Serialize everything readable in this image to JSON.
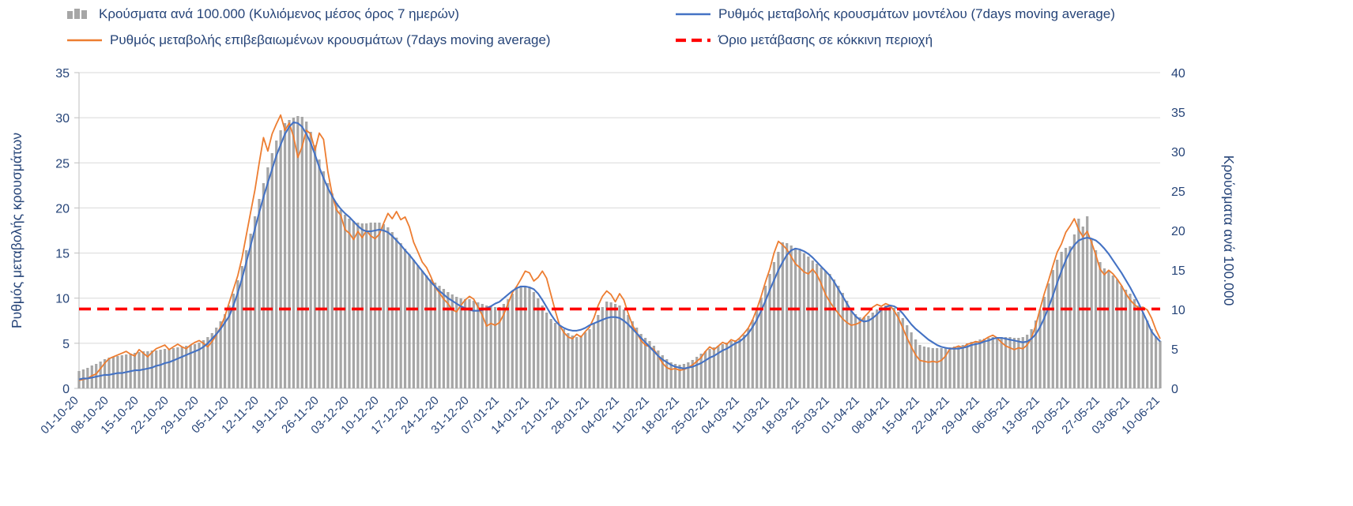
{
  "chart_data": {
    "type": "combo",
    "title": "",
    "grid": true,
    "legend_position": "top",
    "colors": {
      "text": "#264478",
      "grid": "#D9D9D9",
      "axis": "#BFBFBF",
      "background": "#FFFFFF"
    },
    "left_axis": {
      "label": "Ρυθμός μεταβολής κρουσμάτων",
      "min": 0,
      "max": 35,
      "step": 5
    },
    "right_axis": {
      "label": "Κρούσματα ανά 100.000",
      "min": 0,
      "max": 40,
      "step": 5
    },
    "threshold": {
      "label": "Όριο μετάβασης σε κόκκινη περιοχή",
      "value": 8.8,
      "axis": "left",
      "color": "#FF0000",
      "style": "dashed"
    },
    "x_axis": {
      "unit": "day",
      "tick_interval_days": 7,
      "tick_labels": [
        "01-10-20",
        "08-10-20",
        "15-10-20",
        "22-10-20",
        "29-10-20",
        "05-11-20",
        "12-11-20",
        "19-11-20",
        "26-11-20",
        "03-12-20",
        "10-12-20",
        "17-12-20",
        "24-12-20",
        "31-12-20",
        "07-01-21",
        "14-01-21",
        "21-01-21",
        "28-01-21",
        "04-02-21",
        "11-02-21",
        "18-02-21",
        "25-02-21",
        "04-03-21",
        "11-03-21",
        "18-03-21",
        "25-03-21",
        "01-04-21",
        "08-04-21",
        "15-04-21",
        "22-04-21",
        "29-04-21",
        "06-05-21",
        "13-05-21",
        "20-05-21",
        "27-05-21",
        "03-06-21",
        "10-06-21"
      ]
    },
    "series": [
      {
        "name": "Κρούσματα ανά 100.000 (Κυλιόμενος μέσος όρος 7 ημερών)",
        "type": "bar",
        "axis": "right",
        "color": "#A6A6A6",
        "values": [
          2.2,
          2.4,
          2.6,
          2.9,
          3.1,
          3.4,
          3.7,
          3.9,
          4.0,
          4.1,
          4.2,
          4.3,
          4.4,
          4.5,
          4.6,
          4.7,
          4.7,
          4.8,
          4.8,
          4.9,
          5.0,
          5.0,
          5.1,
          5.2,
          5.3,
          5.4,
          5.5,
          5.6,
          5.8,
          6.1,
          6.5,
          7.0,
          7.7,
          8.5,
          9.4,
          10.5,
          12.0,
          13.7,
          15.5,
          17.5,
          19.6,
          21.8,
          24.0,
          26.0,
          28.0,
          29.8,
          31.4,
          32.7,
          33.6,
          34.0,
          34.3,
          34.5,
          34.4,
          33.8,
          32.5,
          30.8,
          29.0,
          27.5,
          26.0,
          24.7,
          23.5,
          22.6,
          22.0,
          21.5,
          21.2,
          21.0,
          20.9,
          20.9,
          21.0,
          21.0,
          21.0,
          20.8,
          20.4,
          19.8,
          19.1,
          18.4,
          17.7,
          17.0,
          16.3,
          15.6,
          14.9,
          14.3,
          13.8,
          13.4,
          13.0,
          12.6,
          12.2,
          11.9,
          11.6,
          11.4,
          11.3,
          11.3,
          11.1,
          10.9,
          10.7,
          10.5,
          10.4,
          10.3,
          10.3,
          10.7,
          11.3,
          12.0,
          12.6,
          13.0,
          12.9,
          12.8,
          12.2,
          11.4,
          10.5,
          9.6,
          8.8,
          8.3,
          8.0,
          7.5,
          7.0,
          6.7,
          6.5,
          6.7,
          7.1,
          7.5,
          8.3,
          9.3,
          10.3,
          11.0,
          10.9,
          10.7,
          10.5,
          10.0,
          9.3,
          8.5,
          7.7,
          6.9,
          6.4,
          6.0,
          5.4,
          4.8,
          4.2,
          3.7,
          3.3,
          3.1,
          3.0,
          3.1,
          3.3,
          3.6,
          4.0,
          4.4,
          4.7,
          5.0,
          5.2,
          5.4,
          5.6,
          5.8,
          6.0,
          6.1,
          6.3,
          6.8,
          7.6,
          8.7,
          10.0,
          11.5,
          13.0,
          14.5,
          16.0,
          17.3,
          18.5,
          18.4,
          18.1,
          17.8,
          17.5,
          17.1,
          16.7,
          16.2,
          15.8,
          15.3,
          14.9,
          14.5,
          13.8,
          13.0,
          12.1,
          11.1,
          10.0,
          9.4,
          9.0,
          9.0,
          9.2,
          9.6,
          10.0,
          10.3,
          10.5,
          10.5,
          10.2,
          9.7,
          8.9,
          8.0,
          7.1,
          6.2,
          5.5,
          5.3,
          5.2,
          5.1,
          5.1,
          5.1,
          5.1,
          5.2,
          5.3,
          5.4,
          5.5,
          5.7,
          5.9,
          6.0,
          6.2,
          6.3,
          6.4,
          6.5,
          6.5,
          6.5,
          6.5,
          6.5,
          6.4,
          6.4,
          6.5,
          6.8,
          7.5,
          8.6,
          10.0,
          11.6,
          13.3,
          15.0,
          16.3,
          17.3,
          17.8,
          18.0,
          19.5,
          21.5,
          20.5,
          21.8,
          19.0,
          17.5,
          16.0,
          15.2,
          14.8,
          14.3,
          13.8,
          13.0,
          12.5,
          12.0,
          11.3,
          10.5,
          9.6,
          8.6,
          7.5,
          6.6,
          6.0
        ]
      },
      {
        "name": "Ρυθμός μεταβολής κρουσμάτων μοντέλου (7days moving average)",
        "type": "line",
        "axis": "left",
        "color": "#4472C4",
        "values": [
          1.0,
          1.1,
          1.1,
          1.2,
          1.3,
          1.4,
          1.5,
          1.5,
          1.6,
          1.7,
          1.7,
          1.8,
          1.9,
          2.0,
          2.0,
          2.1,
          2.2,
          2.3,
          2.5,
          2.6,
          2.8,
          2.9,
          3.1,
          3.3,
          3.5,
          3.7,
          3.9,
          4.1,
          4.3,
          4.6,
          5.0,
          5.5,
          6.0,
          6.6,
          7.3,
          8.0,
          9.2,
          10.6,
          12.2,
          14.0,
          15.8,
          17.7,
          19.5,
          21.2,
          22.8,
          24.3,
          25.8,
          27.0,
          28.2,
          29.0,
          29.5,
          29.4,
          29.0,
          28.2,
          27.2,
          25.9,
          24.5,
          23.3,
          22.2,
          21.3,
          20.5,
          19.9,
          19.4,
          19.0,
          18.5,
          18.0,
          17.6,
          17.4,
          17.4,
          17.5,
          17.6,
          17.5,
          17.3,
          16.9,
          16.4,
          15.9,
          15.3,
          14.8,
          14.2,
          13.6,
          13.0,
          12.4,
          11.8,
          11.3,
          10.8,
          10.4,
          10.0,
          9.7,
          9.4,
          9.1,
          8.9,
          8.7,
          8.6,
          8.6,
          8.7,
          8.9,
          9.1,
          9.4,
          9.6,
          10.0,
          10.4,
          10.8,
          11.1,
          11.3,
          11.3,
          11.2,
          11.0,
          10.5,
          9.8,
          9.0,
          8.2,
          7.5,
          7.0,
          6.7,
          6.5,
          6.4,
          6.4,
          6.5,
          6.7,
          7.0,
          7.2,
          7.4,
          7.6,
          7.8,
          7.9,
          7.9,
          7.8,
          7.5,
          7.1,
          6.6,
          6.1,
          5.6,
          5.1,
          4.6,
          4.1,
          3.6,
          3.2,
          2.9,
          2.6,
          2.4,
          2.3,
          2.2,
          2.3,
          2.4,
          2.6,
          2.8,
          3.1,
          3.4,
          3.6,
          3.9,
          4.2,
          4.4,
          4.7,
          5.0,
          5.2,
          5.6,
          6.1,
          6.8,
          7.6,
          8.6,
          9.7,
          10.9,
          12.0,
          13.1,
          14.0,
          14.8,
          15.3,
          15.5,
          15.4,
          15.2,
          14.9,
          14.5,
          14.0,
          13.5,
          13.0,
          12.5,
          11.8,
          11.0,
          10.2,
          9.4,
          8.6,
          8.0,
          7.6,
          7.4,
          7.5,
          7.8,
          8.2,
          8.7,
          9.0,
          9.2,
          9.1,
          8.8,
          8.3,
          7.7,
          7.1,
          6.6,
          6.2,
          5.8,
          5.4,
          5.1,
          4.8,
          4.6,
          4.5,
          4.4,
          4.4,
          4.4,
          4.5,
          4.6,
          4.8,
          4.9,
          5.0,
          5.2,
          5.3,
          5.5,
          5.6,
          5.6,
          5.5,
          5.4,
          5.3,
          5.2,
          5.1,
          5.2,
          5.5,
          6.0,
          6.8,
          7.8,
          9.0,
          10.3,
          11.7,
          13.0,
          14.2,
          15.2,
          15.9,
          16.4,
          16.6,
          16.7,
          16.6,
          16.4,
          16.0,
          15.5,
          14.9,
          14.2,
          13.5,
          12.8,
          12.0,
          11.2,
          10.3,
          9.4,
          8.4,
          7.4,
          6.3,
          5.7,
          5.2
        ]
      },
      {
        "name": "Ρυθμός μεταβολής επιβεβαιωμένων κρουσμάτων (7days moving average)",
        "type": "line",
        "axis": "left",
        "color": "#ED7D31",
        "values": [
          0.9,
          1.0,
          1.1,
          1.4,
          1.6,
          2.2,
          2.8,
          3.3,
          3.5,
          3.7,
          3.9,
          4.1,
          3.8,
          3.6,
          4.3,
          3.9,
          3.5,
          4.0,
          4.4,
          4.6,
          4.8,
          4.3,
          4.6,
          4.9,
          4.6,
          4.4,
          4.8,
          5.1,
          5.3,
          5.0,
          4.6,
          5.2,
          5.9,
          6.8,
          8.0,
          9.5,
          11.0,
          12.5,
          14.5,
          17.0,
          19.5,
          22.0,
          25.0,
          27.8,
          26.3,
          28.2,
          29.3,
          30.3,
          28.6,
          29.4,
          27.9,
          25.6,
          26.8,
          28.6,
          28.2,
          26.4,
          28.3,
          27.6,
          24.0,
          21.5,
          19.8,
          19.2,
          17.6,
          17.2,
          16.5,
          17.4,
          16.7,
          17.5,
          16.9,
          16.6,
          17.1,
          18.3,
          19.4,
          18.8,
          19.6,
          18.7,
          19.0,
          17.9,
          16.2,
          15.1,
          14.0,
          13.4,
          12.4,
          11.2,
          10.6,
          9.9,
          9.4,
          8.7,
          8.5,
          9.2,
          9.8,
          10.2,
          9.9,
          9.0,
          8.1,
          6.9,
          7.2,
          7.0,
          7.3,
          8.2,
          9.4,
          10.6,
          11.3,
          12.1,
          13.0,
          12.8,
          11.9,
          12.3,
          13.0,
          12.2,
          10.4,
          8.6,
          7.0,
          6.2,
          5.7,
          5.5,
          6.0,
          5.7,
          6.3,
          6.8,
          7.8,
          9.2,
          10.2,
          10.8,
          10.4,
          9.6,
          10.5,
          9.8,
          8.3,
          7.0,
          6.2,
          5.3,
          4.8,
          4.6,
          4.3,
          3.6,
          2.8,
          2.3,
          2.1,
          2.2,
          2.0,
          2.1,
          2.3,
          2.6,
          3.0,
          3.4,
          4.1,
          4.6,
          4.3,
          4.7,
          5.1,
          4.9,
          5.4,
          5.2,
          5.6,
          6.1,
          6.7,
          7.6,
          8.8,
          10.2,
          11.8,
          13.2,
          15.0,
          16.3,
          15.9,
          15.4,
          14.6,
          13.8,
          13.4,
          12.9,
          12.7,
          13.2,
          12.6,
          11.6,
          10.4,
          9.6,
          8.9,
          8.3,
          7.7,
          7.3,
          7.0,
          7.1,
          7.3,
          7.9,
          8.4,
          9.0,
          9.3,
          9.1,
          9.4,
          9.2,
          8.6,
          7.8,
          6.7,
          5.6,
          4.6,
          3.7,
          3.1,
          3.0,
          2.9,
          3.0,
          2.9,
          3.1,
          3.6,
          4.4,
          4.5,
          4.7,
          4.5,
          4.9,
          5.0,
          5.2,
          5.1,
          5.4,
          5.7,
          5.9,
          5.6,
          5.1,
          4.7,
          4.5,
          4.3,
          4.5,
          4.4,
          4.8,
          5.6,
          7.0,
          8.8,
          10.5,
          12.0,
          13.6,
          15.1,
          16.0,
          17.3,
          18.0,
          18.8,
          17.6,
          16.8,
          17.4,
          16.2,
          14.8,
          13.2,
          12.6,
          13.1,
          12.7,
          12.1,
          11.4,
          10.5,
          9.8,
          9.3,
          8.9,
          9.0,
          8.7,
          7.8,
          6.5,
          5.5
        ]
      }
    ]
  }
}
